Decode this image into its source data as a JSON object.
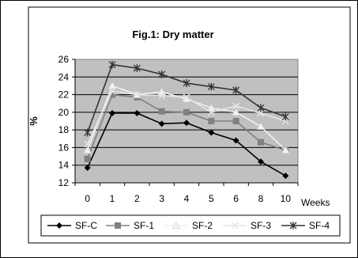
{
  "chart_data": {
    "type": "line",
    "title": "Fig.1: Dry matter",
    "xlabel": "Weeks",
    "ylabel": "%",
    "categories": [
      "0",
      "1",
      "2",
      "3",
      "4",
      "5",
      "6",
      "8",
      "10"
    ],
    "ylim": [
      12,
      26
    ],
    "yticks": [
      12,
      14,
      16,
      18,
      20,
      22,
      24,
      26
    ],
    "grid": true,
    "legend_position": "bottom",
    "plot_background": "#c0c0c0",
    "series": [
      {
        "name": "SF-C",
        "marker": "diamond",
        "color": "#000000",
        "values": [
          13.7,
          19.9,
          19.9,
          18.7,
          18.8,
          17.7,
          16.8,
          14.4,
          12.8
        ]
      },
      {
        "name": "SF-1",
        "marker": "square",
        "color": "#808080",
        "values": [
          14.7,
          22.0,
          21.7,
          20.1,
          20.0,
          19.0,
          19.0,
          16.6,
          15.7
        ]
      },
      {
        "name": "SF-2",
        "marker": "triangle",
        "color": "#f2f2f2",
        "values": [
          15.7,
          23.0,
          22.0,
          22.3,
          21.5,
          20.5,
          20.0,
          18.4,
          15.7
        ]
      },
      {
        "name": "SF-3",
        "marker": "x",
        "color": "#e6e6e6",
        "values": [
          16.4,
          22.4,
          22.0,
          21.9,
          21.7,
          20.0,
          20.7,
          19.9,
          19.0
        ]
      },
      {
        "name": "SF-4",
        "marker": "star",
        "color": "#333333",
        "values": [
          17.7,
          25.4,
          25.0,
          24.3,
          23.3,
          22.9,
          22.5,
          20.5,
          19.5
        ]
      }
    ]
  }
}
